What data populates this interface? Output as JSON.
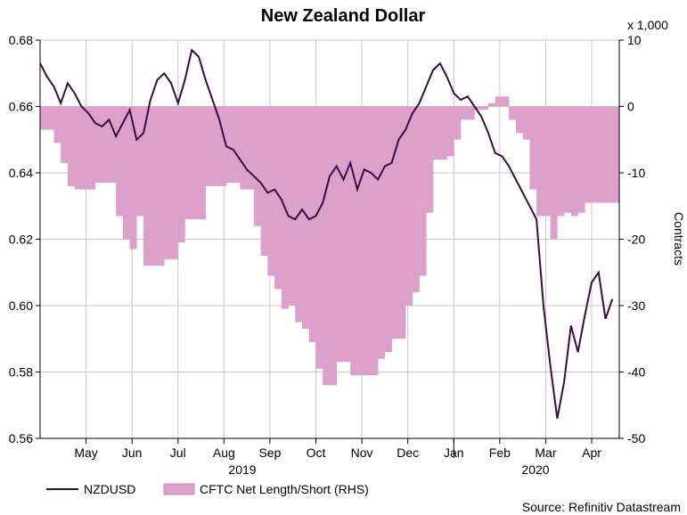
{
  "chart_data": {
    "type": "line",
    "title": "New Zealand Dollar",
    "x_label_years": [
      "2019",
      "2020"
    ],
    "x_ticks": [
      "May",
      "Jun",
      "Jul",
      "Aug",
      "Sep",
      "Oct",
      "Nov",
      "Dec",
      "Jan",
      "Feb",
      "Mar",
      "Apr"
    ],
    "y_left": {
      "ticks": [
        "0.56",
        "0.58",
        "0.60",
        "0.62",
        "0.64",
        "0.66",
        "0.68"
      ],
      "range": [
        0.56,
        0.68
      ]
    },
    "y_right": {
      "label": "Contracts",
      "multiplier": "x 1,000",
      "ticks": [
        "-50",
        "-40",
        "-30",
        "-20",
        "-10",
        "0",
        "10"
      ],
      "range": [
        -50,
        10
      ]
    },
    "grid": true,
    "legend": {
      "placement": "bottom-left",
      "entries": [
        "NZDUSD",
        "CFTC Net Length/Short (RHS)"
      ]
    },
    "source": "Source: Refinitiv Datastream",
    "colors": {
      "line": "#3b0a45",
      "bars": "#dca0cb",
      "bars_stroke": "#cc88bb"
    },
    "series": [
      {
        "name": "NZDUSD",
        "points": [
          [
            0.0,
            0.673
          ],
          [
            0.15,
            0.669
          ],
          [
            0.3,
            0.666
          ],
          [
            0.45,
            0.661
          ],
          [
            0.6,
            0.667
          ],
          [
            0.75,
            0.664
          ],
          [
            0.9,
            0.66
          ],
          [
            1.05,
            0.658
          ],
          [
            1.2,
            0.655
          ],
          [
            1.35,
            0.654
          ],
          [
            1.5,
            0.656
          ],
          [
            1.65,
            0.651
          ],
          [
            1.8,
            0.655
          ],
          [
            1.95,
            0.659
          ],
          [
            2.1,
            0.65
          ],
          [
            2.25,
            0.652
          ],
          [
            2.4,
            0.662
          ],
          [
            2.55,
            0.668
          ],
          [
            2.7,
            0.67
          ],
          [
            2.85,
            0.667
          ],
          [
            3.0,
            0.661
          ],
          [
            3.15,
            0.668
          ],
          [
            3.3,
            0.677
          ],
          [
            3.45,
            0.675
          ],
          [
            3.6,
            0.668
          ],
          [
            3.75,
            0.662
          ],
          [
            3.9,
            0.656
          ],
          [
            4.05,
            0.648
          ],
          [
            4.2,
            0.647
          ],
          [
            4.35,
            0.644
          ],
          [
            4.5,
            0.641
          ],
          [
            4.65,
            0.639
          ],
          [
            4.8,
            0.637
          ],
          [
            4.95,
            0.634
          ],
          [
            5.1,
            0.635
          ],
          [
            5.25,
            0.632
          ],
          [
            5.4,
            0.627
          ],
          [
            5.55,
            0.626
          ],
          [
            5.7,
            0.629
          ],
          [
            5.85,
            0.626
          ],
          [
            6.0,
            0.627
          ],
          [
            6.15,
            0.631
          ],
          [
            6.3,
            0.639
          ],
          [
            6.45,
            0.642
          ],
          [
            6.6,
            0.638
          ],
          [
            6.75,
            0.643
          ],
          [
            6.9,
            0.635
          ],
          [
            7.05,
            0.641
          ],
          [
            7.2,
            0.64
          ],
          [
            7.35,
            0.638
          ],
          [
            7.5,
            0.642
          ],
          [
            7.65,
            0.643
          ],
          [
            7.8,
            0.65
          ],
          [
            7.95,
            0.653
          ],
          [
            8.1,
            0.658
          ],
          [
            8.25,
            0.661
          ],
          [
            8.4,
            0.666
          ],
          [
            8.55,
            0.671
          ],
          [
            8.7,
            0.673
          ],
          [
            8.85,
            0.669
          ],
          [
            9.0,
            0.664
          ],
          [
            9.15,
            0.662
          ],
          [
            9.3,
            0.663
          ],
          [
            9.45,
            0.66
          ],
          [
            9.6,
            0.657
          ],
          [
            9.75,
            0.652
          ],
          [
            9.9,
            0.646
          ],
          [
            10.05,
            0.645
          ],
          [
            10.2,
            0.642
          ],
          [
            10.35,
            0.638
          ],
          [
            10.5,
            0.634
          ],
          [
            10.65,
            0.63
          ],
          [
            10.8,
            0.626
          ],
          [
            10.95,
            0.6
          ],
          [
            11.1,
            0.582
          ],
          [
            11.25,
            0.566
          ],
          [
            11.4,
            0.577
          ],
          [
            11.55,
            0.594
          ],
          [
            11.7,
            0.586
          ],
          [
            11.85,
            0.597
          ],
          [
            12.0,
            0.607
          ],
          [
            12.15,
            0.61
          ],
          [
            12.3,
            0.596
          ],
          [
            12.45,
            0.602
          ]
        ]
      },
      {
        "name": "CFTC Net Length/Short (RHS)",
        "points": [
          [
            0.0,
            -3.5
          ],
          [
            0.15,
            -3.5
          ],
          [
            0.3,
            -5.5
          ],
          [
            0.45,
            -8.5
          ],
          [
            0.6,
            -12.0
          ],
          [
            0.75,
            -12.5
          ],
          [
            0.9,
            -12.5
          ],
          [
            1.05,
            -12.5
          ],
          [
            1.2,
            -11.5
          ],
          [
            1.35,
            -11.5
          ],
          [
            1.5,
            -11.5
          ],
          [
            1.65,
            -16.5
          ],
          [
            1.8,
            -20.0
          ],
          [
            1.95,
            -21.5
          ],
          [
            2.1,
            -16.5
          ],
          [
            2.25,
            -24.0
          ],
          [
            2.4,
            -24.0
          ],
          [
            2.55,
            -24.0
          ],
          [
            2.7,
            -23.0
          ],
          [
            2.85,
            -23.0
          ],
          [
            3.0,
            -20.5
          ],
          [
            3.15,
            -17.0
          ],
          [
            3.3,
            -17.0
          ],
          [
            3.45,
            -17.0
          ],
          [
            3.6,
            -12.0
          ],
          [
            3.75,
            -12.0
          ],
          [
            3.9,
            -12.0
          ],
          [
            4.05,
            -11.5
          ],
          [
            4.2,
            -11.5
          ],
          [
            4.35,
            -12.5
          ],
          [
            4.5,
            -12.5
          ],
          [
            4.65,
            -18.0
          ],
          [
            4.8,
            -22.5
          ],
          [
            4.95,
            -25.5
          ],
          [
            5.1,
            -27.5
          ],
          [
            5.25,
            -30.5
          ],
          [
            5.4,
            -30.0
          ],
          [
            5.55,
            -32.5
          ],
          [
            5.7,
            -33.5
          ],
          [
            5.85,
            -35.5
          ],
          [
            6.0,
            -39.5
          ],
          [
            6.15,
            -42.0
          ],
          [
            6.3,
            -42.0
          ],
          [
            6.45,
            -38.5
          ],
          [
            6.6,
            -38.5
          ],
          [
            6.75,
            -40.5
          ],
          [
            6.9,
            -40.5
          ],
          [
            7.05,
            -40.5
          ],
          [
            7.2,
            -40.5
          ],
          [
            7.35,
            -38.0
          ],
          [
            7.5,
            -37.0
          ],
          [
            7.65,
            -35.0
          ],
          [
            7.8,
            -35.0
          ],
          [
            7.95,
            -30.0
          ],
          [
            8.1,
            -28.0
          ],
          [
            8.25,
            -25.5
          ],
          [
            8.4,
            -16.0
          ],
          [
            8.55,
            -8.0
          ],
          [
            8.7,
            -8.0
          ],
          [
            8.85,
            -7.5
          ],
          [
            9.0,
            -5.0
          ],
          [
            9.15,
            -2.0
          ],
          [
            9.3,
            -2.0
          ],
          [
            9.45,
            -0.5
          ],
          [
            9.6,
            -0.5
          ],
          [
            9.75,
            0.5
          ],
          [
            9.9,
            1.5
          ],
          [
            10.05,
            1.5
          ],
          [
            10.2,
            -2.0
          ],
          [
            10.35,
            -4.0
          ],
          [
            10.5,
            -5.0
          ],
          [
            10.65,
            -12.5
          ],
          [
            10.8,
            -16.5
          ],
          [
            10.95,
            -16.5
          ],
          [
            11.1,
            -20.0
          ],
          [
            11.25,
            -16.5
          ],
          [
            11.4,
            -16.0
          ],
          [
            11.55,
            -16.5
          ],
          [
            11.7,
            -16.0
          ],
          [
            11.85,
            -14.5
          ],
          [
            12.0,
            -14.5
          ],
          [
            12.15,
            -14.5
          ],
          [
            12.3,
            -14.5
          ],
          [
            12.45,
            -14.5
          ]
        ]
      }
    ]
  }
}
